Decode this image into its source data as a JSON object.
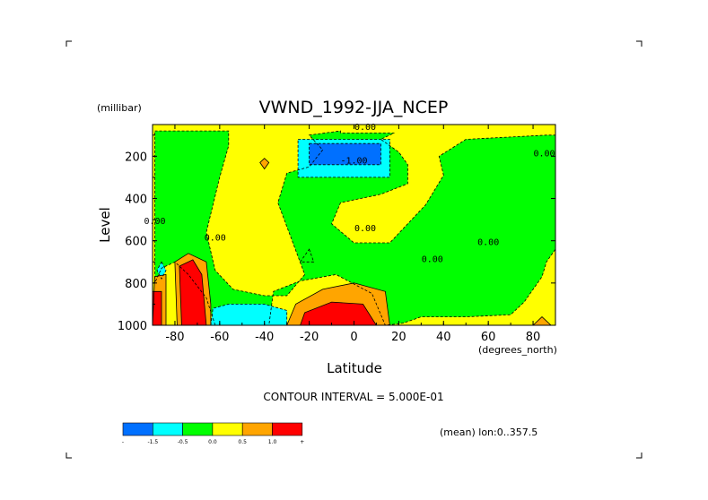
{
  "chart_data": {
    "type": "heatmap",
    "title": "VWND_1992-JJA_NCEP",
    "xlabel": "Latitude",
    "x_units": "(degrees_north)",
    "ylabel": "Level",
    "y_units": "(millibar)",
    "xlim": [
      -90,
      90
    ],
    "ylim": [
      1000,
      50
    ],
    "x_ticks": [
      -80,
      -60,
      -40,
      -20,
      0,
      20,
      40,
      60,
      80
    ],
    "y_ticks": [
      200,
      400,
      600,
      800,
      1000
    ],
    "contour_interval_text": "CONTOUR INTERVAL = 5.000E-01",
    "subtitle": "(mean) lon:0..357.5",
    "contour_labels": [
      {
        "text": "-1.00",
        "x": 0,
        "y": 235
      },
      {
        "text": "0.00",
        "x": 5,
        "y": 555
      },
      {
        "text": "0.00",
        "x": -62,
        "y": 600
      },
      {
        "text": "0.00",
        "x": -89,
        "y": 520
      },
      {
        "text": "0.00",
        "x": 35,
        "y": 700
      },
      {
        "text": "0.00",
        "x": 60,
        "y": 620
      },
      {
        "text": "0.00",
        "x": 85,
        "y": 200
      },
      {
        "text": "0.00",
        "x": 5,
        "y": 75
      }
    ],
    "colorbar": {
      "bins": [
        {
          "color": "#0070ff",
          "range": [
            null,
            -1.5
          ]
        },
        {
          "color": "#00ffff",
          "range": [
            -1.5,
            -0.5
          ]
        },
        {
          "color": "#00ff00",
          "range": [
            -0.5,
            0.0
          ]
        },
        {
          "color": "#ffff00",
          "range": [
            0.0,
            0.5
          ]
        },
        {
          "color": "#ffa500",
          "range": [
            0.5,
            1.0
          ]
        },
        {
          "color": "#ff0000",
          "range": [
            1.0,
            null
          ]
        }
      ],
      "tick_labels": [
        "-1.5",
        "-0.5",
        "0.0",
        "0.5",
        "1.0"
      ]
    },
    "regions": [
      {
        "level": "negative",
        "color": "#00ff00",
        "poly": [
          [
            -89,
            80
          ],
          [
            -56,
            80
          ],
          [
            -56,
            150
          ],
          [
            -60,
            300
          ],
          [
            -66,
            560
          ],
          [
            -62,
            740
          ],
          [
            -54,
            830
          ],
          [
            -40,
            860
          ],
          [
            -30,
            860
          ],
          [
            -22,
            760
          ],
          [
            -28,
            590
          ],
          [
            -34,
            420
          ],
          [
            -30,
            280
          ],
          [
            -20,
            250
          ],
          [
            -14,
            170
          ],
          [
            -20,
            100
          ],
          [
            -6,
            80
          ],
          [
            -6,
            90
          ],
          [
            18,
            90
          ],
          [
            12,
            120
          ],
          [
            20,
            180
          ],
          [
            24,
            240
          ],
          [
            24,
            330
          ],
          [
            12,
            380
          ],
          [
            -6,
            420
          ],
          [
            -10,
            520
          ],
          [
            0,
            610
          ],
          [
            16,
            610
          ],
          [
            32,
            430
          ],
          [
            40,
            290
          ],
          [
            38,
            200
          ],
          [
            50,
            120
          ],
          [
            86,
            100
          ],
          [
            90,
            100
          ],
          [
            90,
            640
          ],
          [
            86,
            700
          ],
          [
            84,
            770
          ],
          [
            76,
            890
          ],
          [
            70,
            950
          ],
          [
            50,
            960
          ],
          [
            30,
            960
          ],
          [
            22,
            990
          ],
          [
            14,
            1000
          ],
          [
            8,
            850
          ],
          [
            -8,
            760
          ],
          [
            -24,
            790
          ],
          [
            -36,
            840
          ],
          [
            -38,
            1000
          ],
          [
            -62,
            1000
          ],
          [
            -66,
            870
          ],
          [
            -74,
            760
          ],
          [
            -80,
            700
          ],
          [
            -86,
            730
          ],
          [
            -89,
            800
          ]
        ]
      },
      {
        "level": "negative",
        "color": "#00ff00",
        "poly": [
          [
            -20,
            640
          ],
          [
            -18,
            700
          ],
          [
            -24,
            700
          ]
        ]
      },
      {
        "level": "negative",
        "color": "#00ffff",
        "poly": [
          [
            -64,
            1000
          ],
          [
            -63,
            920
          ],
          [
            -56,
            900
          ],
          [
            -40,
            900
          ],
          [
            -30,
            930
          ],
          [
            -30,
            1000
          ]
        ]
      },
      {
        "level": "negative",
        "color": "#00ffff",
        "poly": [
          [
            -86,
            700
          ],
          [
            -84,
            740
          ],
          [
            -86,
            780
          ],
          [
            -88,
            740
          ]
        ]
      },
      {
        "level": "negative",
        "color": "#00ffff",
        "poly": [
          [
            -25,
            120
          ],
          [
            16,
            120
          ],
          [
            16,
            300
          ],
          [
            -25,
            300
          ]
        ]
      },
      {
        "level": "negative",
        "color": "#0070ff",
        "poly": [
          [
            -20,
            140
          ],
          [
            12,
            140
          ],
          [
            12,
            240
          ],
          [
            -20,
            240
          ]
        ]
      },
      {
        "level": "positive",
        "color": "#ffa500",
        "poly": [
          [
            -42,
            230
          ],
          [
            -40,
            210
          ],
          [
            -38,
            230
          ],
          [
            -40,
            260
          ]
        ]
      },
      {
        "level": "positive",
        "color": "#ffa500",
        "poly": [
          [
            -79,
            1000
          ],
          [
            -80,
            700
          ],
          [
            -74,
            660
          ],
          [
            -66,
            700
          ],
          [
            -64,
            900
          ],
          [
            -64,
            1000
          ]
        ]
      },
      {
        "level": "positive",
        "color": "#ffa500",
        "poly": [
          [
            -90,
            1000
          ],
          [
            -89,
            770
          ],
          [
            -84,
            760
          ],
          [
            -84,
            1000
          ]
        ]
      },
      {
        "level": "positive",
        "color": "#ffa500",
        "poly": [
          [
            -30,
            1000
          ],
          [
            -26,
            900
          ],
          [
            -14,
            830
          ],
          [
            0,
            800
          ],
          [
            14,
            840
          ],
          [
            16,
            1000
          ]
        ]
      },
      {
        "level": "positive",
        "color": "#ff0000",
        "poly": [
          [
            -77,
            1000
          ],
          [
            -78,
            720
          ],
          [
            -72,
            690
          ],
          [
            -68,
            760
          ],
          [
            -66,
            1000
          ]
        ]
      },
      {
        "level": "positive",
        "color": "#ff0000",
        "poly": [
          [
            -90,
            1000
          ],
          [
            -90,
            840
          ],
          [
            -86,
            840
          ],
          [
            -86,
            1000
          ]
        ]
      },
      {
        "level": "positive",
        "color": "#ff0000",
        "poly": [
          [
            -24,
            1000
          ],
          [
            -22,
            940
          ],
          [
            -10,
            890
          ],
          [
            4,
            900
          ],
          [
            10,
            1000
          ]
        ]
      },
      {
        "level": "positive",
        "color": "#ffa500",
        "poly": [
          [
            80,
            1000
          ],
          [
            84,
            960
          ],
          [
            88,
            1000
          ]
        ]
      }
    ]
  }
}
